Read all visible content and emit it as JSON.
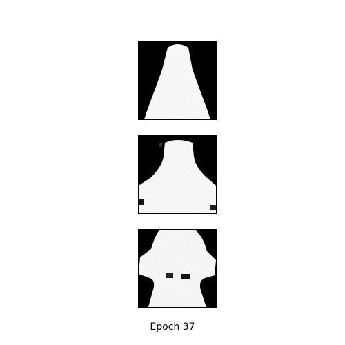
{
  "figure": {
    "caption": "Epoch 37",
    "sample_count": 3,
    "colormap": "gray"
  },
  "colors": {
    "background": "#ffffff",
    "image_dark": "#000000",
    "image_light": "#f2f2f2"
  }
}
